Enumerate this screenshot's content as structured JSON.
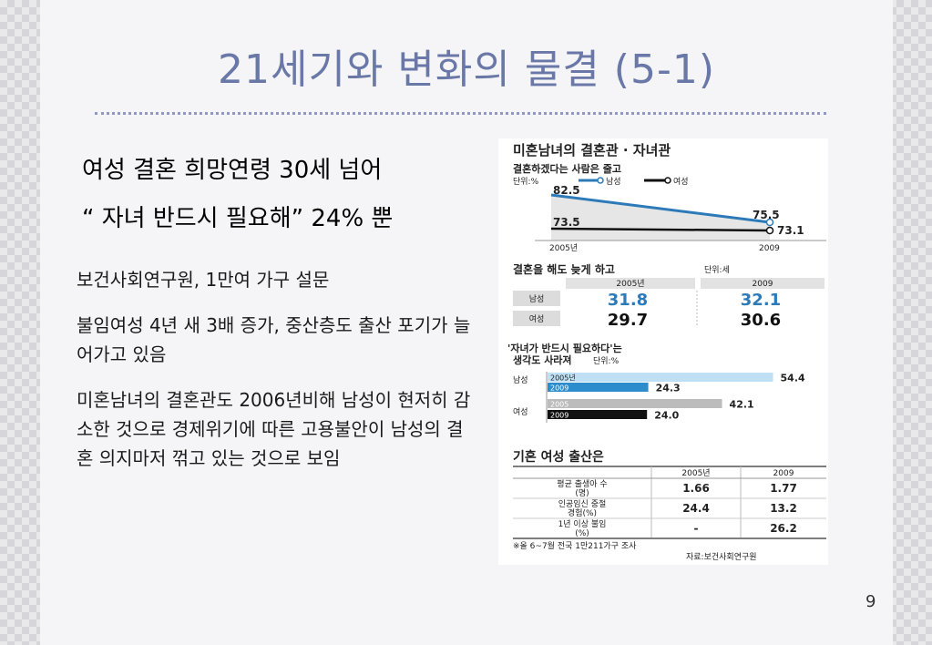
{
  "title": "21세기와 변화의 물결 (5-1)",
  "headline1": "여성 결혼 희망연령 30세 넘어",
  "headline2": "“ 자녀 반드시 필요해” 24% 뿐",
  "paragraphs": [
    "보건사회연구원, 1만여 가구 설문",
    "불임여성 4년 새 3배 증가, 중산층도 출산 포기가 늘어가고 있음",
    "미혼남녀의 결혼관도 2006년비해 남성이 현저히 감소한 것으로 경제위기에 따른 고용불안이 남성의 결혼 의지마저 꺾고 있는 것으로 보임"
  ],
  "page_number": "9",
  "infographic": {
    "title": "미혼남녀의 결혼관 · 자녀관",
    "line_section": {
      "title": "결혼하겠다는 사람은 줄고",
      "unit": "단위:%",
      "legend_male": "남성",
      "legend_female": "여성",
      "x_start": "2005년",
      "x_end": "2009",
      "male_start": "82.5",
      "male_end": "75.5",
      "female_start": "73.5",
      "female_end": "73.1"
    },
    "age_section": {
      "title": "결혼을 해도 늦게 하고",
      "unit": "단위:세",
      "col1": "2005년",
      "col2": "2009",
      "row_male": "남성",
      "row_female": "여성",
      "male_2005": "31.8",
      "male_2009": "32.1",
      "female_2005": "29.7",
      "female_2009": "30.6"
    },
    "bar_section": {
      "title_line1": "'자녀가 반드시 필요하다'는",
      "title_line2": "생각도 사라져",
      "unit": "단위:%",
      "male": "남성",
      "female": "여성",
      "bars": [
        {
          "label": "2005년",
          "value": "54.4"
        },
        {
          "label": "2009",
          "value": "24.3"
        },
        {
          "label": "2005",
          "value": "42.1"
        },
        {
          "label": "2009",
          "value": "24.0"
        }
      ]
    },
    "table_section": {
      "title": "기혼 여성 출산은",
      "col1": "2005년",
      "col2": "2009",
      "row1_a": "평균 출생아 수",
      "row1_b": "(명)",
      "row1_v1": "1.66",
      "row1_v2": "1.77",
      "row2_a": "인공임신 중절",
      "row2_b": "경험(%)",
      "row2_v1": "24.4",
      "row2_v2": "13.2",
      "row3_a": "1년 이상 불임",
      "row3_b": "(%)",
      "row3_v1": "-",
      "row3_v2": "26.2",
      "note": "※올 6~7월 전국 1만211가구 조사",
      "source": "자료:보건사회연구원"
    },
    "colors": {
      "male_line": "#2d7ab8",
      "female_line": "#111111",
      "male_text": "#2d7ab8",
      "bar_male_2005": "#bfe0f4",
      "bar_male_2009": "#2d8ccc",
      "bar_female_2005": "#bcbcbc",
      "bar_female_2009": "#111111"
    }
  }
}
